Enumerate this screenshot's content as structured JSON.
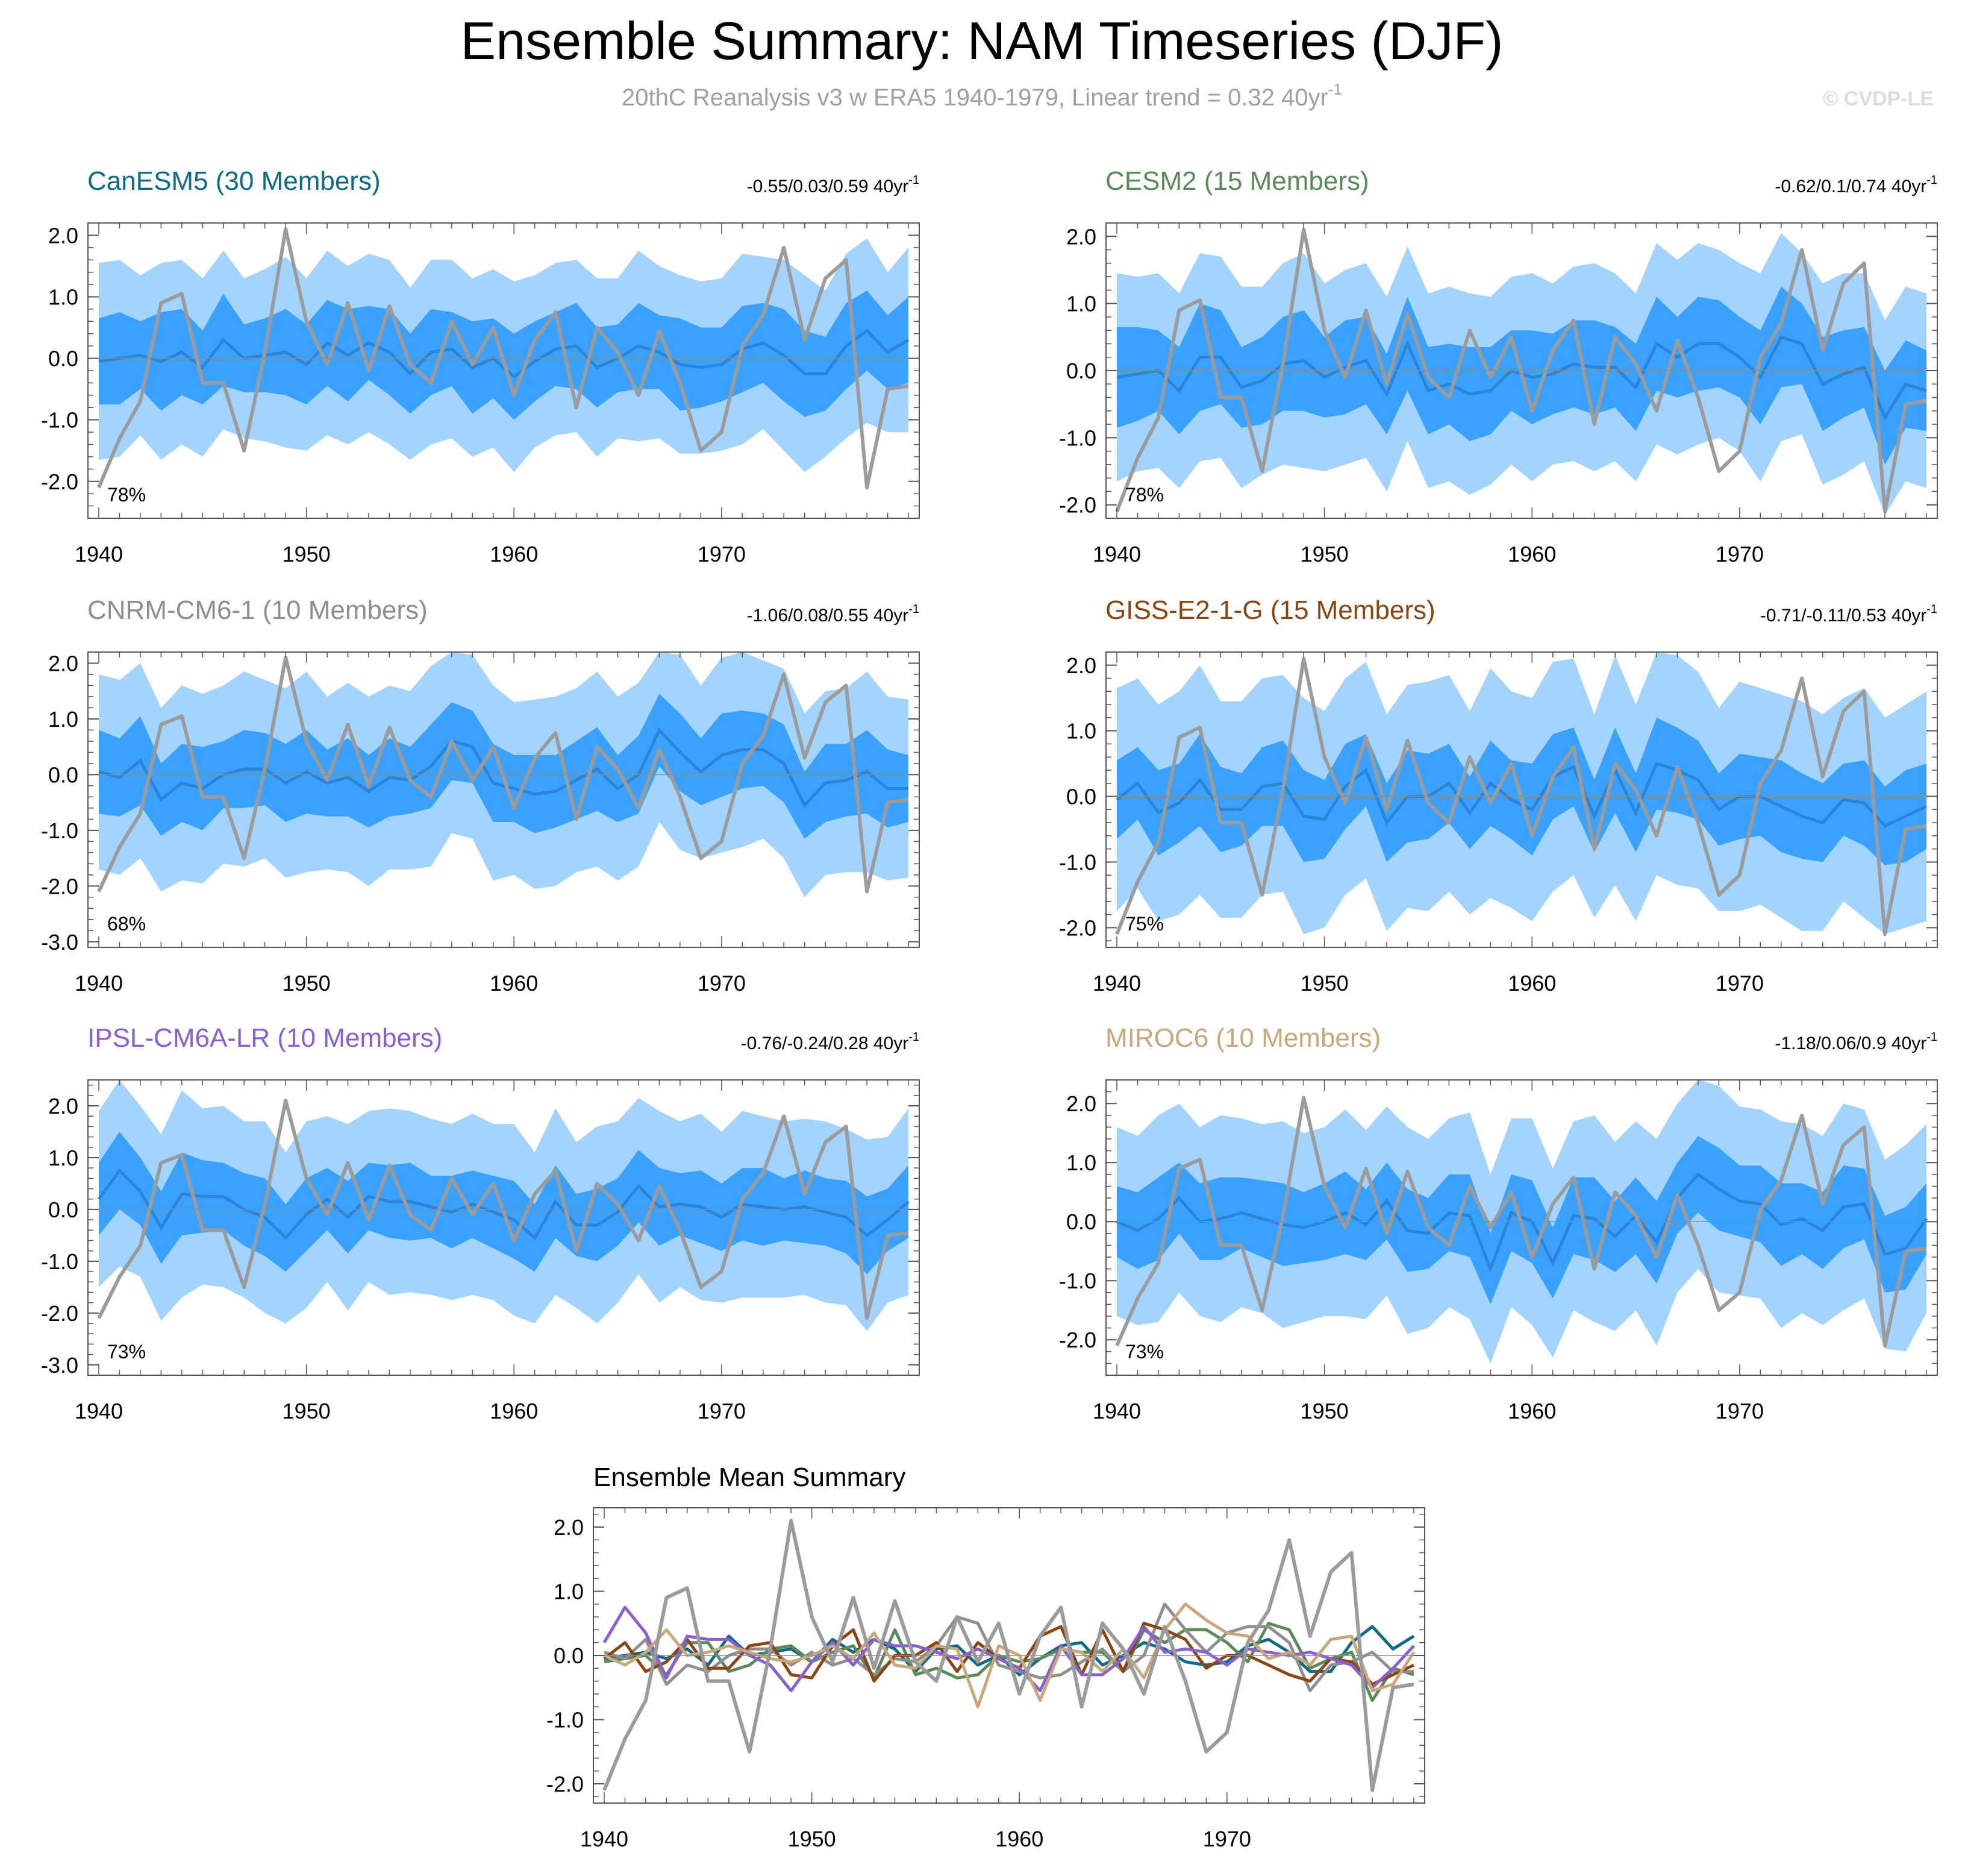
{
  "figure": {
    "title": "Ensemble Summary: NAM Timeseries (DJF)",
    "subtitle": "20thC Reanalysis v3 w ERA5 1940-1979, Linear trend = 0.32 40yr",
    "subtitle_sup": "-1",
    "watermark": "© CVDP-LE"
  },
  "colors": {
    "outer_band": "#a3d3ff",
    "inner_band": "#3aa1ff",
    "ensemble_mean": "#2b84d6",
    "observed": "#9b9b9b"
  },
  "chart_data": {
    "type": "line",
    "x_start": 1940,
    "x_end": 1979,
    "years": [
      1940,
      1941,
      1942,
      1943,
      1944,
      1945,
      1946,
      1947,
      1948,
      1949,
      1950,
      1951,
      1952,
      1953,
      1954,
      1955,
      1956,
      1957,
      1958,
      1959,
      1960,
      1961,
      1962,
      1963,
      1964,
      1965,
      1966,
      1967,
      1968,
      1969,
      1970,
      1971,
      1972,
      1973,
      1974,
      1975,
      1976,
      1977,
      1978,
      1979
    ],
    "xticks": [
      "1940",
      "1950",
      "1960",
      "1970"
    ],
    "observed": {
      "name": "20thC Reanalysis v3 w ERA5",
      "values": [
        -2.1,
        -1.3,
        -0.7,
        0.9,
        1.05,
        -0.4,
        -0.4,
        -1.5,
        0.1,
        2.1,
        0.6,
        -0.1,
        0.9,
        -0.2,
        0.85,
        -0.1,
        -0.4,
        0.6,
        -0.1,
        0.5,
        -0.6,
        0.3,
        0.75,
        -0.8,
        0.5,
        0.1,
        -0.6,
        0.45,
        -0.4,
        -1.5,
        -1.2,
        0.2,
        0.7,
        1.8,
        0.3,
        1.3,
        1.6,
        -2.1,
        -0.5,
        -0.45
      ]
    },
    "panels": [
      {
        "model": "CanESM5",
        "label": "CanESM5 (30 Members)",
        "color": "#0e6a86",
        "range_text": "-0.55/0.03/0.59 40yr",
        "range_sup": "-1",
        "percent": "78%",
        "ylim": [
          -2.6,
          2.2
        ],
        "yticks": [
          "2.0",
          "1.0",
          "0.0",
          "-1.0",
          "-2.0"
        ],
        "ytick_values": [
          2,
          1,
          0,
          -1,
          -2
        ],
        "mean": [
          -0.05,
          0,
          0.05,
          -0.05,
          0.1,
          -0.15,
          0.3,
          0,
          0.05,
          0.1,
          -0.1,
          0.25,
          0.05,
          0.25,
          0.1,
          -0.25,
          0.1,
          0.15,
          -0.15,
          0,
          -0.3,
          -0.05,
          0.15,
          0.2,
          -0.15,
          0,
          0.2,
          0.1,
          -0.1,
          -0.15,
          -0.1,
          0.15,
          0.25,
          0.05,
          -0.25,
          -0.25,
          0.2,
          0.45,
          0.1,
          0.3
        ],
        "spread": [
          0.7,
          0.75,
          0.55,
          0.8,
          0.7,
          0.6,
          0.75,
          0.55,
          0.6,
          0.7,
          0.65,
          0.7,
          0.75,
          0.6,
          0.7,
          0.65,
          0.7,
          0.6,
          0.75,
          0.65,
          0.7,
          0.65,
          0.6,
          0.7,
          0.65,
          0.55,
          0.7,
          0.6,
          0.75,
          0.65,
          0.6,
          0.7,
          0.65,
          0.75,
          0.7,
          0.6,
          0.7,
          0.65,
          0.6,
          0.7
        ],
        "outer": [
          0.9,
          0.85,
          0.75,
          0.8,
          0.8,
          0.85,
          0.7,
          0.75,
          0.8,
          0.85,
          0.75,
          0.8,
          0.7,
          0.85,
          0.8,
          0.75,
          0.8,
          0.85,
          0.7,
          0.8,
          0.85,
          0.75,
          0.8,
          0.7,
          0.8,
          0.75,
          0.85,
          0.8,
          0.7,
          0.75,
          0.8,
          0.85,
          0.75,
          0.8,
          0.9,
          0.75,
          0.8,
          0.85,
          0.7,
          0.8
        ]
      },
      {
        "model": "CESM2",
        "label": "CESM2 (15 Members)",
        "color": "#5a8a5a",
        "range_text": "-0.62/0.1/0.74 40yr",
        "range_sup": "-1",
        "percent": "78%",
        "ylim": [
          -2.2,
          2.2
        ],
        "yticks": [
          "2.0",
          "1.0",
          "0.0",
          "-1.0",
          "-2.0"
        ],
        "ytick_values": [
          2,
          1,
          0,
          -1,
          -2
        ],
        "mean": [
          -0.1,
          -0.05,
          0,
          -0.3,
          0.2,
          0.2,
          -0.25,
          -0.15,
          0.1,
          0.15,
          -0.1,
          0.05,
          0.15,
          -0.35,
          0.4,
          -0.3,
          -0.2,
          -0.35,
          -0.3,
          0,
          -0.1,
          -0.05,
          0.1,
          0.05,
          0.05,
          -0.25,
          0.4,
          0.2,
          0.4,
          0.4,
          0.2,
          -0.1,
          0.5,
          0.4,
          -0.2,
          -0.05,
          0.05,
          -0.7,
          -0.2,
          -0.3
        ],
        "spread": [
          0.75,
          0.7,
          0.6,
          0.65,
          0.8,
          0.7,
          0.6,
          0.65,
          0.7,
          0.75,
          0.6,
          0.7,
          0.65,
          0.6,
          0.7,
          0.65,
          0.6,
          0.7,
          0.65,
          0.6,
          0.7,
          0.6,
          0.65,
          0.7,
          0.6,
          0.65,
          0.7,
          0.6,
          0.7,
          0.65,
          0.6,
          0.7,
          0.75,
          0.6,
          0.7,
          0.65,
          0.6,
          0.7,
          0.65,
          0.6
        ],
        "outer": [
          0.8,
          0.75,
          0.85,
          0.8,
          0.75,
          0.8,
          0.9,
          0.75,
          0.8,
          0.85,
          0.8,
          0.75,
          0.8,
          0.85,
          0.75,
          0.8,
          0.85,
          0.8,
          0.75,
          0.8,
          0.85,
          0.75,
          0.8,
          0.85,
          0.8,
          0.75,
          0.8,
          0.85,
          0.8,
          0.75,
          0.8,
          0.85,
          0.8,
          0.75,
          0.8,
          0.85,
          0.8,
          0.75,
          0.8,
          0.85
        ]
      },
      {
        "model": "CNRM-CM6-1",
        "label": "CNRM-CM6-1 (10 Members)",
        "color": "#8e8e8e",
        "range_text": "-1.06/0.08/0.55 40yr",
        "range_sup": "-1",
        "percent": "68%",
        "ylim": [
          -3.1,
          2.2
        ],
        "yticks": [
          "2.0",
          "1.0",
          "0.0",
          "-1.0",
          "-2.0",
          "-3.0"
        ],
        "ytick_values": [
          2,
          1,
          0,
          -1,
          -2,
          -3
        ],
        "mean": [
          0.05,
          -0.05,
          0.25,
          -0.45,
          -0.15,
          -0.25,
          0,
          0.1,
          0.1,
          -0.15,
          0.05,
          -0.15,
          -0.05,
          -0.3,
          -0.05,
          -0.1,
          0.15,
          0.6,
          0.5,
          -0.15,
          -0.25,
          -0.35,
          -0.3,
          -0.1,
          0.1,
          -0.25,
          0,
          0.8,
          0.4,
          0.05,
          0.35,
          0.45,
          0.45,
          0.2,
          -0.55,
          -0.15,
          -0.1,
          0.05,
          -0.25,
          -0.25
        ],
        "spread": [
          0.75,
          0.7,
          0.8,
          0.65,
          0.7,
          0.75,
          0.6,
          0.7,
          0.65,
          0.7,
          0.75,
          0.6,
          0.7,
          0.65,
          0.7,
          0.6,
          0.75,
          0.7,
          0.65,
          0.7,
          0.6,
          0.7,
          0.65,
          0.7,
          0.75,
          0.6,
          0.7,
          0.65,
          0.7,
          0.6,
          0.75,
          0.7,
          0.65,
          0.7,
          0.6,
          0.7,
          0.65,
          0.75,
          0.7,
          0.6
        ],
        "outer": [
          1.0,
          1.05,
          0.95,
          1.0,
          1.05,
          0.95,
          1.0,
          1.05,
          0.95,
          1.0,
          1.05,
          0.95,
          1.0,
          1.05,
          0.95,
          1.0,
          1.05,
          0.95,
          1.0,
          1.05,
          0.95,
          1.0,
          1.05,
          0.95,
          1.0,
          1.05,
          0.95,
          1.0,
          1.05,
          0.95,
          1.0,
          1.05,
          0.95,
          1.0,
          1.05,
          0.95,
          1.0,
          1.05,
          0.95,
          1.0
        ]
      },
      {
        "model": "GISS-E2-1-G",
        "label": "GISS-E2-1-G (15 Members)",
        "color": "#8b4513",
        "range_text": "-0.71/-0.11/0.53 40yr",
        "range_sup": "-1",
        "percent": "75%",
        "ylim": [
          -2.3,
          2.2
        ],
        "yticks": [
          "2.0",
          "1.0",
          "0.0",
          "-1.0",
          "-2.0"
        ],
        "ytick_values": [
          2,
          1,
          0,
          -1,
          -2
        ],
        "mean": [
          -0.05,
          0.2,
          -0.25,
          -0.1,
          0.25,
          -0.2,
          -0.2,
          0.15,
          0.2,
          -0.3,
          -0.35,
          0.15,
          0.4,
          -0.4,
          0,
          0,
          0.2,
          -0.25,
          0.2,
          -0.05,
          -0.2,
          0.3,
          0.45,
          -0.3,
          0.4,
          -0.25,
          0.5,
          0.4,
          0.25,
          -0.2,
          0,
          0,
          -0.15,
          -0.3,
          -0.4,
          -0.05,
          -0.1,
          -0.45,
          -0.3,
          -0.15
        ],
        "spread": [
          0.6,
          0.55,
          0.65,
          0.6,
          0.7,
          0.65,
          0.55,
          0.6,
          0.65,
          0.7,
          0.6,
          0.65,
          0.55,
          0.6,
          0.7,
          0.65,
          0.6,
          0.55,
          0.65,
          0.6,
          0.7,
          0.65,
          0.6,
          0.55,
          0.65,
          0.6,
          0.7,
          0.65,
          0.6,
          0.55,
          0.65,
          0.6,
          0.7,
          0.65,
          0.6,
          0.55,
          0.65,
          0.6,
          0.7,
          0.65
        ],
        "outer": [
          1.1,
          1.05,
          1.0,
          1.1,
          1.05,
          1.0,
          1.1,
          1.05,
          1.0,
          1.1,
          1.05,
          1.0,
          1.1,
          1.05,
          1.0,
          1.1,
          1.05,
          1.0,
          1.1,
          1.05,
          1.0,
          1.1,
          1.05,
          1.0,
          1.1,
          1.05,
          1.0,
          1.1,
          1.05,
          1.0,
          1.1,
          1.05,
          1.0,
          1.1,
          1.05,
          1.0,
          1.1,
          1.05,
          1.0,
          1.1
        ]
      },
      {
        "model": "IPSL-CM6A-LR",
        "label": "IPSL-CM6A-LR (10 Members)",
        "color": "#8a5fcf",
        "range_text": "-0.76/-0.24/0.28 40yr",
        "range_sup": "-1",
        "percent": "73%",
        "ylim": [
          -3.2,
          2.5
        ],
        "yticks": [
          "2.0",
          "1.0",
          "0.0",
          "-1.0",
          "-2.0",
          "-3.0"
        ],
        "ytick_values": [
          2,
          1,
          0,
          -1,
          -2,
          -3
        ],
        "mean": [
          0.2,
          0.75,
          0.35,
          -0.35,
          0.3,
          0.25,
          0.25,
          0,
          -0.15,
          -0.55,
          -0.1,
          0.2,
          -0.15,
          0.25,
          0.15,
          0.15,
          0.05,
          -0.05,
          0.1,
          -0.05,
          -0.2,
          -0.55,
          0.15,
          -0.3,
          -0.3,
          -0.05,
          0.45,
          0.05,
          0.1,
          0.05,
          -0.15,
          0.1,
          0.05,
          0,
          0.05,
          -0.05,
          -0.15,
          -0.5,
          -0.2,
          0.15
        ],
        "spread": [
          0.7,
          0.75,
          0.65,
          0.7,
          0.8,
          0.7,
          0.65,
          0.7,
          0.75,
          0.65,
          0.7,
          0.6,
          0.7,
          0.65,
          0.7,
          0.75,
          0.6,
          0.7,
          0.65,
          0.7,
          0.75,
          0.65,
          0.7,
          0.6,
          0.7,
          0.65,
          0.7,
          0.75,
          0.6,
          0.7,
          0.65,
          0.7,
          0.75,
          0.6,
          0.7,
          0.65,
          0.7,
          0.75,
          0.6,
          0.7
        ],
        "outer": [
          1.0,
          1.1,
          1.0,
          1.1,
          1.2,
          1.0,
          1.1,
          1.0,
          1.1,
          1.0,
          1.1,
          1.0,
          1.1,
          1.0,
          1.1,
          1.0,
          1.1,
          1.0,
          1.1,
          1.0,
          1.1,
          1.0,
          1.1,
          1.0,
          1.2,
          1.1,
          1.0,
          1.1,
          1.0,
          1.1,
          1.0,
          1.1,
          1.0,
          1.1,
          1.0,
          1.1,
          1.0,
          1.1,
          1.0,
          1.1
        ]
      },
      {
        "model": "MIROC6",
        "label": "MIROC6 (10 Members)",
        "color": "#c8a87a",
        "range_text": "-1.18/0.06/0.9 40yr",
        "range_sup": "-1",
        "percent": "73%",
        "ylim": [
          -2.6,
          2.4
        ],
        "yticks": [
          "2.0",
          "1.0",
          "0.0",
          "-1.0",
          "-2.0"
        ],
        "ytick_values": [
          2,
          1,
          0,
          -1,
          -2
        ],
        "mean": [
          0,
          -0.15,
          0.05,
          0.4,
          0,
          0.05,
          0.15,
          0.05,
          -0.05,
          -0.1,
          0,
          0.15,
          -0.05,
          0.35,
          -0.15,
          -0.2,
          0.15,
          0.1,
          -0.8,
          0.15,
          0,
          -0.7,
          0.1,
          0.05,
          -0.25,
          0.1,
          -0.35,
          0.4,
          0.8,
          0.55,
          0.35,
          0.3,
          -0.05,
          0.05,
          -0.15,
          0.25,
          0.3,
          -0.55,
          -0.45,
          0.05
        ],
        "spread": [
          0.6,
          0.65,
          0.7,
          0.6,
          0.65,
          0.7,
          0.6,
          0.65,
          0.7,
          0.6,
          0.65,
          0.7,
          0.6,
          0.65,
          0.7,
          0.6,
          0.65,
          0.7,
          0.6,
          0.65,
          0.7,
          0.6,
          0.65,
          0.7,
          0.6,
          0.65,
          0.7,
          0.6,
          0.65,
          0.7,
          0.6,
          0.65,
          0.7,
          0.6,
          0.65,
          0.7,
          0.6,
          0.65,
          0.7,
          0.6
        ],
        "outer": [
          1.0,
          0.95,
          1.05,
          1.0,
          0.95,
          1.05,
          1.0,
          0.95,
          1.05,
          1.0,
          0.95,
          1.05,
          1.0,
          0.95,
          1.05,
          1.0,
          0.95,
          1.05,
          1.0,
          0.95,
          1.05,
          1.0,
          0.95,
          1.05,
          1.0,
          0.95,
          1.05,
          1.0,
          0.95,
          1.05,
          1.0,
          0.95,
          1.05,
          1.0,
          0.95,
          1.05,
          1.0,
          0.95,
          1.05,
          1.0
        ]
      }
    ],
    "summary": {
      "title": "Ensemble Mean Summary",
      "ylim": [
        -2.3,
        2.3
      ],
      "yticks": [
        "2.0",
        "1.0",
        "0.0",
        "-1.0",
        "-2.0"
      ],
      "ytick_values": [
        2,
        1,
        0,
        -1,
        -2
      ]
    }
  }
}
